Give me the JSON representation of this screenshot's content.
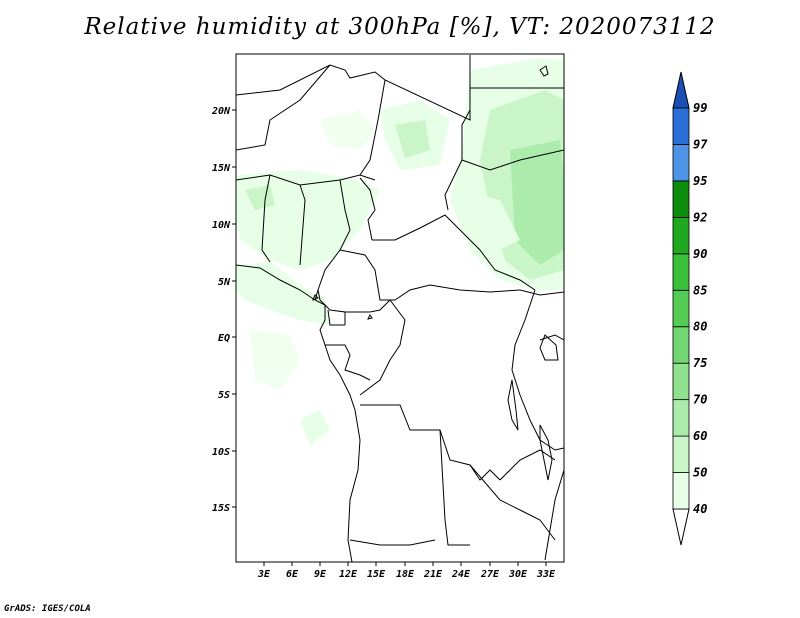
{
  "title": "Relative humidity at 300hPa [%], VT: 2020073112",
  "credit": "GrADS: IGES/COLA",
  "map": {
    "lon_ticks": [
      "3E",
      "6E",
      "9E",
      "12E",
      "15E",
      "18E",
      "21E",
      "24E",
      "27E",
      "30E",
      "33E"
    ],
    "lat_ticks": [
      "20N",
      "15N",
      "10N",
      "5N",
      "EQ",
      "5S",
      "10S",
      "15S"
    ]
  },
  "colorbar": {
    "levels": [
      "40",
      "50",
      "60",
      "70",
      "75",
      "80",
      "85",
      "90",
      "92",
      "95",
      "97",
      "99"
    ],
    "colors": [
      "#e6ffe6",
      "#c9f5c9",
      "#abebab",
      "#8fe08f",
      "#72d672",
      "#55cc55",
      "#39bf39",
      "#1fa81f",
      "#0d8c0d",
      "#4d94e6",
      "#2b6fd6",
      "#1a4fb3"
    ]
  }
}
